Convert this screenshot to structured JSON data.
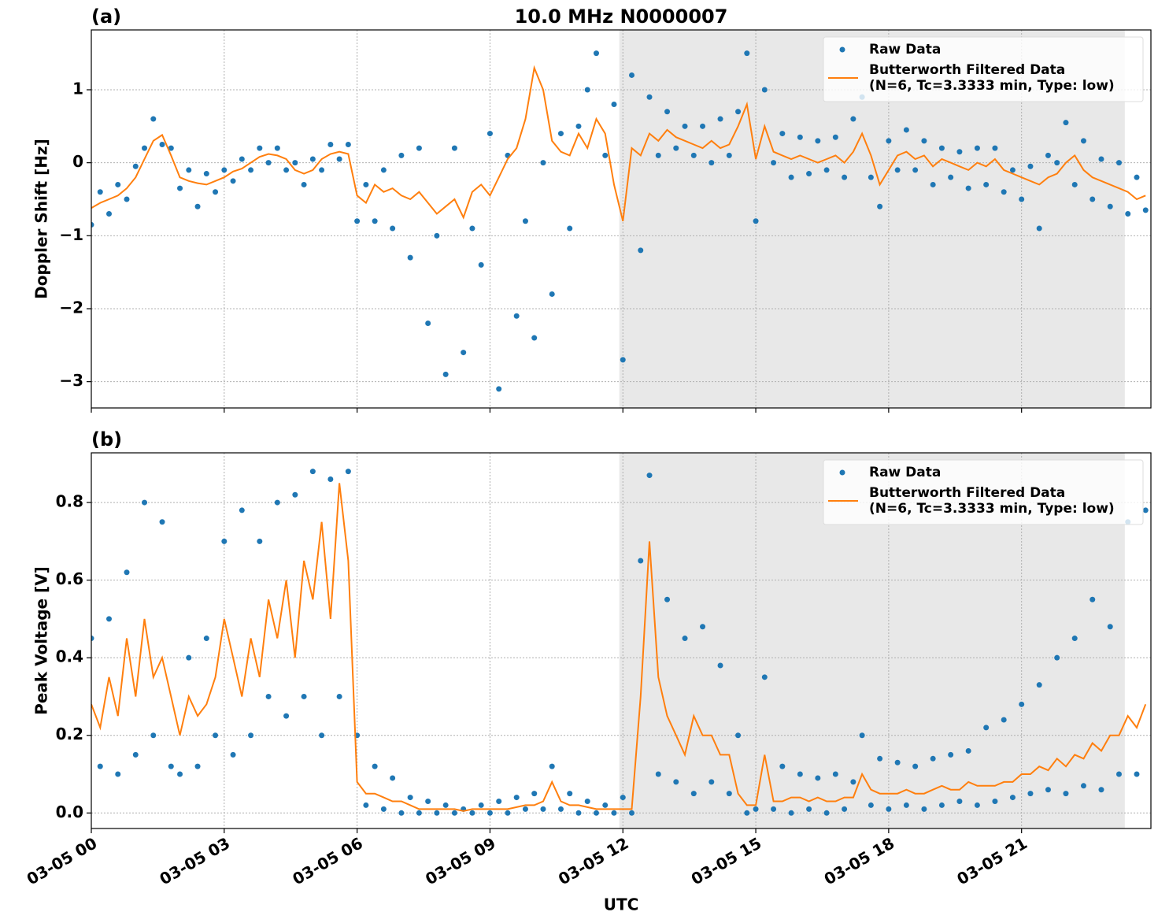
{
  "chart_data": [
    {
      "type": "scatter",
      "title": "10.0 MHz N0000007",
      "panel_label": "(a)",
      "ylabel": "Doppler Shift [Hz]",
      "xlim": [
        0,
        23.92
      ],
      "xticks": [
        0,
        3,
        6,
        9,
        12,
        15,
        18,
        21
      ],
      "ylim": [
        -3.36,
        1.82
      ],
      "yticks": [
        1,
        0,
        {
          "value": -1,
          "label": "−1"
        },
        {
          "value": -2,
          "label": "−2"
        },
        {
          "value": -3,
          "label": "−3"
        }
      ],
      "grid": true,
      "legend": "upper right",
      "shade": {
        "x": [
          11.92,
          23.33
        ],
        "color": "#e8e8e8"
      },
      "x": [
        0,
        0.2,
        0.4,
        0.6,
        0.8,
        1,
        1.2,
        1.4,
        1.6,
        1.8,
        2,
        2.2,
        2.4,
        2.6,
        2.8,
        3,
        3.2,
        3.4,
        3.6,
        3.8,
        4,
        4.2,
        4.4,
        4.6,
        4.8,
        5,
        5.2,
        5.4,
        5.6,
        5.8,
        6,
        6.2,
        6.4,
        6.6,
        6.8,
        7,
        7.2,
        7.4,
        7.6,
        7.8,
        8,
        8.2,
        8.4,
        8.6,
        8.8,
        9,
        9.2,
        9.4,
        9.6,
        9.8,
        10,
        10.2,
        10.4,
        10.6,
        10.8,
        11,
        11.2,
        11.4,
        11.6,
        11.8,
        12,
        12.2,
        12.4,
        12.6,
        12.8,
        13,
        13.2,
        13.4,
        13.6,
        13.8,
        14,
        14.2,
        14.4,
        14.6,
        14.8,
        15,
        15.2,
        15.4,
        15.6,
        15.8,
        16,
        16.2,
        16.4,
        16.6,
        16.8,
        17,
        17.2,
        17.4,
        17.6,
        17.8,
        18,
        18.2,
        18.4,
        18.6,
        18.8,
        19,
        19.2,
        19.4,
        19.6,
        19.8,
        20,
        20.2,
        20.4,
        20.6,
        20.8,
        21,
        21.2,
        21.4,
        21.6,
        21.8,
        22,
        22.2,
        22.4,
        22.6,
        22.8,
        23,
        23.2,
        23.4,
        23.6,
        23.8
      ],
      "series": [
        {
          "name": "Raw Data",
          "mode": "markers",
          "color": "#1f77b4",
          "values": [
            -0.85,
            -0.4,
            -0.7,
            -0.3,
            -0.5,
            -0.05,
            0.2,
            0.6,
            0.25,
            0.2,
            -0.35,
            -0.1,
            -0.6,
            -0.15,
            -0.4,
            -0.1,
            -0.25,
            0.05,
            -0.1,
            0.2,
            0.0,
            0.2,
            -0.1,
            0.0,
            -0.3,
            0.05,
            -0.1,
            0.25,
            0.05,
            0.25,
            -0.8,
            -0.3,
            -0.8,
            -0.1,
            -0.9,
            0.1,
            -1.3,
            0.2,
            -2.2,
            -1.0,
            -2.9,
            0.2,
            -2.6,
            -0.9,
            -1.4,
            0.4,
            -3.1,
            0.1,
            -2.1,
            -0.8,
            -2.4,
            0.0,
            -1.8,
            0.4,
            -0.9,
            0.5,
            1.0,
            1.5,
            0.1,
            0.8,
            -2.7,
            1.2,
            -1.2,
            0.9,
            0.1,
            0.7,
            0.2,
            0.5,
            0.1,
            0.5,
            0.0,
            0.6,
            0.1,
            0.7,
            1.5,
            -0.8,
            1.0,
            0.0,
            0.4,
            -0.2,
            0.35,
            -0.15,
            0.3,
            -0.1,
            0.35,
            -0.2,
            0.6,
            0.9,
            -0.2,
            -0.6,
            0.3,
            -0.1,
            0.45,
            -0.1,
            0.3,
            -0.3,
            0.2,
            -0.2,
            0.15,
            -0.35,
            0.2,
            -0.3,
            0.2,
            -0.4,
            -0.1,
            -0.5,
            -0.05,
            -0.9,
            0.1,
            0.0,
            0.55,
            -0.3,
            0.3,
            -0.5,
            0.05,
            -0.6,
            0.0,
            -0.7,
            -0.2,
            -0.65
          ]
        },
        {
          "name": "Butterworth Filtered Data",
          "parameters": "(N=6, Tc=3.3333 min, Type: low)",
          "mode": "line",
          "color": "#ff7f0e",
          "values": [
            -0.62,
            -0.55,
            -0.5,
            -0.45,
            -0.35,
            -0.2,
            0.05,
            0.3,
            0.38,
            0.1,
            -0.2,
            -0.25,
            -0.28,
            -0.3,
            -0.25,
            -0.2,
            -0.12,
            -0.08,
            0.0,
            0.08,
            0.12,
            0.1,
            0.05,
            -0.1,
            -0.15,
            -0.1,
            0.05,
            0.12,
            0.15,
            0.12,
            -0.45,
            -0.55,
            -0.3,
            -0.4,
            -0.35,
            -0.45,
            -0.5,
            -0.4,
            -0.55,
            -0.7,
            -0.6,
            -0.5,
            -0.75,
            -0.4,
            -0.3,
            -0.45,
            -0.2,
            0.05,
            0.2,
            0.6,
            1.3,
            1.0,
            0.3,
            0.15,
            0.1,
            0.4,
            0.2,
            0.6,
            0.4,
            -0.3,
            -0.8,
            0.2,
            0.1,
            0.4,
            0.3,
            0.45,
            0.35,
            0.3,
            0.25,
            0.2,
            0.3,
            0.2,
            0.25,
            0.5,
            0.8,
            0.05,
            0.5,
            0.15,
            0.1,
            0.05,
            0.1,
            0.05,
            0.0,
            0.05,
            0.1,
            0.0,
            0.15,
            0.4,
            0.1,
            -0.3,
            -0.1,
            0.1,
            0.15,
            0.05,
            0.1,
            -0.05,
            0.05,
            0.0,
            -0.05,
            -0.1,
            0.0,
            -0.05,
            0.05,
            -0.1,
            -0.15,
            -0.2,
            -0.25,
            -0.3,
            -0.2,
            -0.15,
            0.0,
            0.1,
            -0.1,
            -0.2,
            -0.25,
            -0.3,
            -0.35,
            -0.4,
            -0.5,
            -0.45
          ]
        }
      ]
    },
    {
      "type": "scatter",
      "panel_label": "(b)",
      "ylabel": "Peak Voltage [V]",
      "xlabel": "UTC",
      "xlim": [
        0,
        23.92
      ],
      "xticks": [
        {
          "value": 0,
          "label": "03-05 00"
        },
        {
          "value": 3,
          "label": "03-05 03"
        },
        {
          "value": 6,
          "label": "03-05 06"
        },
        {
          "value": 9,
          "label": "03-05 09"
        },
        {
          "value": 12,
          "label": "03-05 12"
        },
        {
          "value": 15,
          "label": "03-05 15"
        },
        {
          "value": 18,
          "label": "03-05 18"
        },
        {
          "value": 21,
          "label": "03-05 21"
        }
      ],
      "ylim": [
        -0.04,
        0.928
      ],
      "yticks": [
        {
          "value": 0,
          "label": "0.0"
        },
        0.2,
        0.4,
        0.6,
        0.8
      ],
      "grid": true,
      "legend": "upper right",
      "shade": {
        "x": [
          11.92,
          23.33
        ],
        "color": "#e8e8e8"
      },
      "x": [
        0,
        0.2,
        0.4,
        0.6,
        0.8,
        1,
        1.2,
        1.4,
        1.6,
        1.8,
        2,
        2.2,
        2.4,
        2.6,
        2.8,
        3,
        3.2,
        3.4,
        3.6,
        3.8,
        4,
        4.2,
        4.4,
        4.6,
        4.8,
        5,
        5.2,
        5.4,
        5.6,
        5.8,
        6,
        6.2,
        6.4,
        6.6,
        6.8,
        7,
        7.2,
        7.4,
        7.6,
        7.8,
        8,
        8.2,
        8.4,
        8.6,
        8.8,
        9,
        9.2,
        9.4,
        9.6,
        9.8,
        10,
        10.2,
        10.4,
        10.6,
        10.8,
        11,
        11.2,
        11.4,
        11.6,
        11.8,
        12,
        12.2,
        12.4,
        12.6,
        12.8,
        13,
        13.2,
        13.4,
        13.6,
        13.8,
        14,
        14.2,
        14.4,
        14.6,
        14.8,
        15,
        15.2,
        15.4,
        15.6,
        15.8,
        16,
        16.2,
        16.4,
        16.6,
        16.8,
        17,
        17.2,
        17.4,
        17.6,
        17.8,
        18,
        18.2,
        18.4,
        18.6,
        18.8,
        19,
        19.2,
        19.4,
        19.6,
        19.8,
        20,
        20.2,
        20.4,
        20.6,
        20.8,
        21,
        21.2,
        21.4,
        21.6,
        21.8,
        22,
        22.2,
        22.4,
        22.6,
        22.8,
        23,
        23.2,
        23.4,
        23.6,
        23.8
      ],
      "series": [
        {
          "name": "Raw Data",
          "mode": "markers",
          "color": "#1f77b4",
          "values": [
            0.45,
            0.12,
            0.5,
            0.1,
            0.62,
            0.15,
            0.8,
            0.2,
            0.75,
            0.12,
            0.1,
            0.4,
            0.12,
            0.45,
            0.2,
            0.7,
            0.15,
            0.78,
            0.2,
            0.7,
            0.3,
            0.8,
            0.25,
            0.82,
            0.3,
            0.88,
            0.2,
            0.86,
            0.3,
            0.88,
            0.2,
            0.02,
            0.12,
            0.01,
            0.09,
            0.0,
            0.04,
            0.0,
            0.03,
            0.0,
            0.02,
            0.0,
            0.01,
            0.0,
            0.02,
            0.0,
            0.03,
            0.0,
            0.04,
            0.01,
            0.05,
            0.01,
            0.12,
            0.01,
            0.05,
            0.0,
            0.03,
            0.0,
            0.02,
            0.0,
            0.04,
            0.0,
            0.65,
            0.87,
            0.1,
            0.55,
            0.08,
            0.45,
            0.05,
            0.48,
            0.08,
            0.38,
            0.05,
            0.2,
            0.0,
            0.01,
            0.35,
            0.01,
            0.12,
            0.0,
            0.1,
            0.01,
            0.09,
            0.0,
            0.1,
            0.01,
            0.08,
            0.2,
            0.02,
            0.14,
            0.01,
            0.13,
            0.02,
            0.12,
            0.01,
            0.14,
            0.02,
            0.15,
            0.03,
            0.16,
            0.02,
            0.22,
            0.03,
            0.24,
            0.04,
            0.28,
            0.05,
            0.33,
            0.06,
            0.4,
            0.05,
            0.45,
            0.07,
            0.55,
            0.06,
            0.48,
            0.1,
            0.75,
            0.1,
            0.78
          ]
        },
        {
          "name": "Butterworth Filtered Data",
          "parameters": "(N=6, Tc=3.3333 min, Type: low)",
          "mode": "line",
          "color": "#ff7f0e",
          "values": [
            0.28,
            0.22,
            0.35,
            0.25,
            0.45,
            0.3,
            0.5,
            0.35,
            0.4,
            0.3,
            0.2,
            0.3,
            0.25,
            0.28,
            0.35,
            0.5,
            0.4,
            0.3,
            0.45,
            0.35,
            0.55,
            0.45,
            0.6,
            0.4,
            0.65,
            0.55,
            0.75,
            0.5,
            0.85,
            0.65,
            0.08,
            0.05,
            0.05,
            0.04,
            0.03,
            0.03,
            0.02,
            0.01,
            0.01,
            0.01,
            0.01,
            0.01,
            0.005,
            0.01,
            0.01,
            0.01,
            0.01,
            0.01,
            0.015,
            0.02,
            0.02,
            0.03,
            0.08,
            0.03,
            0.02,
            0.02,
            0.015,
            0.01,
            0.01,
            0.01,
            0.01,
            0.01,
            0.3,
            0.7,
            0.35,
            0.25,
            0.2,
            0.15,
            0.25,
            0.2,
            0.2,
            0.15,
            0.15,
            0.05,
            0.02,
            0.02,
            0.15,
            0.03,
            0.03,
            0.04,
            0.04,
            0.03,
            0.04,
            0.03,
            0.03,
            0.04,
            0.04,
            0.1,
            0.06,
            0.05,
            0.05,
            0.05,
            0.06,
            0.05,
            0.05,
            0.06,
            0.07,
            0.06,
            0.06,
            0.08,
            0.07,
            0.07,
            0.07,
            0.08,
            0.08,
            0.1,
            0.1,
            0.12,
            0.11,
            0.14,
            0.12,
            0.15,
            0.14,
            0.18,
            0.16,
            0.2,
            0.2,
            0.25,
            0.22,
            0.28
          ]
        }
      ]
    }
  ]
}
